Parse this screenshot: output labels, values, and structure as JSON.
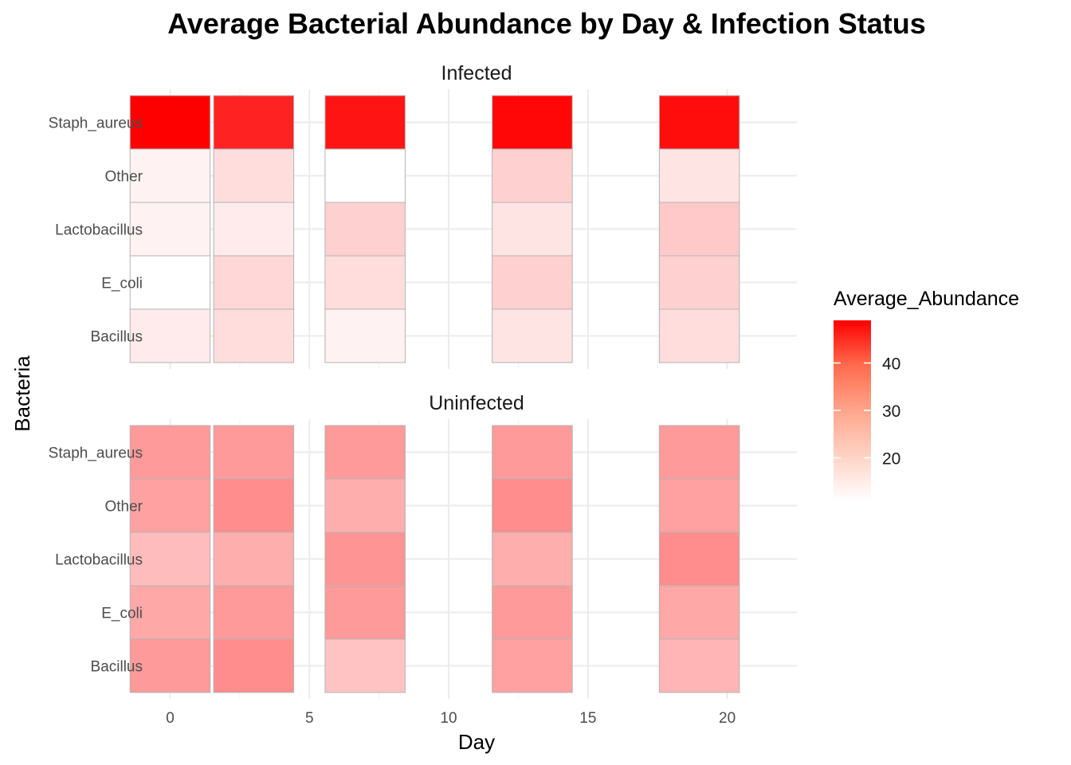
{
  "chart_data": {
    "type": "heatmap",
    "title": "Average Bacterial Abundance by Day & Infection Status",
    "xlabel": "Day",
    "ylabel": "Bacteria",
    "x_ticks": [
      0,
      5,
      10,
      15,
      20
    ],
    "xlim": [
      -0.5,
      22.5
    ],
    "days": [
      0,
      3,
      7,
      13,
      19
    ],
    "bacteria": [
      "Bacillus",
      "E_coli",
      "Lactobacillus",
      "Other",
      "Staph_aureus"
    ],
    "facets": [
      {
        "name": "Infected",
        "values": [
          [
            14,
            16,
            13,
            15,
            16
          ],
          [
            11,
            17,
            16,
            18,
            18
          ],
          [
            13,
            14,
            18,
            15,
            19
          ],
          [
            13,
            16,
            11,
            18,
            15
          ],
          [
            49,
            44,
            46,
            48,
            47
          ]
        ]
      },
      {
        "name": "Uninfected",
        "values": [
          [
            26,
            28,
            20,
            25,
            22
          ],
          [
            24,
            26,
            26,
            26,
            24
          ],
          [
            21,
            23,
            27,
            23,
            28
          ],
          [
            25,
            28,
            23,
            28,
            25
          ],
          [
            26,
            26,
            26,
            26,
            26
          ]
        ]
      }
    ],
    "legend": {
      "title": "Average_Abundance",
      "breaks": [
        20,
        30,
        40
      ],
      "low": 11,
      "high": 49,
      "low_color": "#ffffff",
      "high_color": "#ff0000",
      "placement": "right"
    },
    "grid": true
  }
}
